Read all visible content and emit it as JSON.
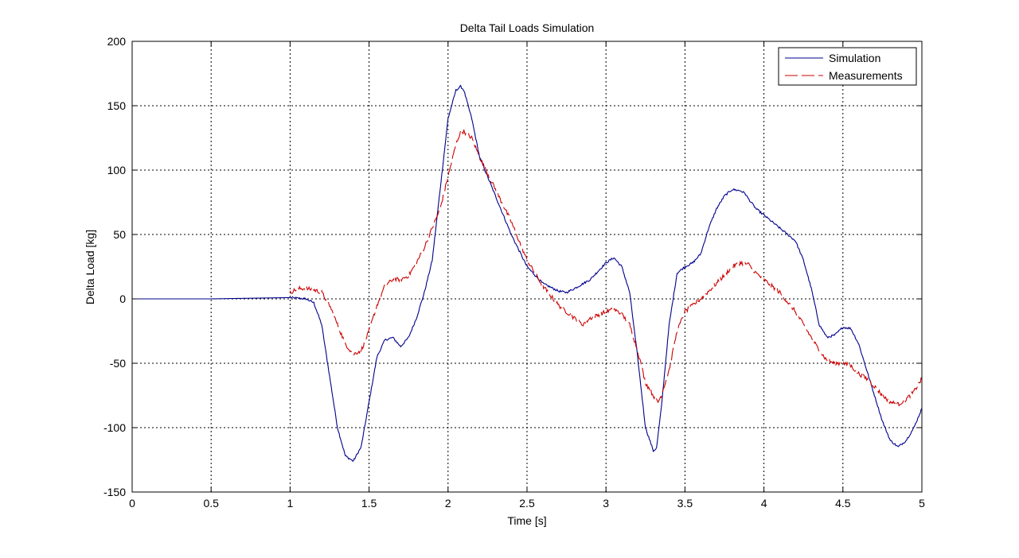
{
  "chart_data": {
    "type": "line",
    "title": "Delta Tail Loads Simulation",
    "xlabel": "Time [s]",
    "ylabel": "Delta Load [kg]",
    "xlim": [
      0,
      5
    ],
    "ylim": [
      -150,
      200
    ],
    "xticks": [
      0,
      0.5,
      1,
      1.5,
      2,
      2.5,
      3,
      3.5,
      4,
      4.5,
      5
    ],
    "xtick_labels": [
      "0",
      "0.5",
      "1",
      "1.5",
      "2",
      "2.5",
      "3",
      "3.5",
      "4",
      "4.5",
      "5"
    ],
    "yticks": [
      -150,
      -100,
      -50,
      0,
      50,
      100,
      150,
      200
    ],
    "ytick_labels": [
      "-150",
      "-100",
      "-50",
      "0",
      "50",
      "100",
      "150",
      "200"
    ],
    "grid": true,
    "legend_position": "top-right",
    "series": [
      {
        "name": "Simulation",
        "color": "#00008b",
        "style": "solid",
        "x": [
          0,
          0.5,
          1.0,
          1.1,
          1.15,
          1.2,
          1.25,
          1.3,
          1.35,
          1.4,
          1.45,
          1.5,
          1.55,
          1.6,
          1.65,
          1.7,
          1.75,
          1.8,
          1.85,
          1.9,
          1.95,
          2.0,
          2.05,
          2.08,
          2.1,
          2.15,
          2.2,
          2.3,
          2.4,
          2.5,
          2.6,
          2.7,
          2.75,
          2.8,
          2.9,
          3.0,
          3.05,
          3.1,
          3.15,
          3.2,
          3.25,
          3.3,
          3.32,
          3.35,
          3.4,
          3.45,
          3.5,
          3.55,
          3.6,
          3.65,
          3.7,
          3.75,
          3.8,
          3.85,
          3.88,
          3.9,
          3.95,
          4.0,
          4.1,
          4.2,
          4.25,
          4.3,
          4.35,
          4.4,
          4.45,
          4.5,
          4.55,
          4.6,
          4.65,
          4.7,
          4.75,
          4.8,
          4.85,
          4.9,
          4.95,
          5.0
        ],
        "y": [
          0,
          0,
          1,
          0,
          -3,
          -20,
          -60,
          -100,
          -122,
          -126,
          -115,
          -80,
          -45,
          -32,
          -30,
          -37,
          -30,
          -15,
          5,
          30,
          85,
          140,
          162,
          165,
          162,
          140,
          110,
          80,
          50,
          25,
          12,
          6,
          5,
          8,
          15,
          28,
          32,
          25,
          5,
          -45,
          -100,
          -118,
          -116,
          -85,
          -20,
          20,
          25,
          28,
          35,
          55,
          70,
          80,
          85,
          84,
          82,
          78,
          70,
          65,
          55,
          45,
          30,
          8,
          -20,
          -30,
          -28,
          -22,
          -23,
          -35,
          -55,
          -75,
          -95,
          -110,
          -115,
          -110,
          -100,
          -85
        ]
      },
      {
        "name": "Measurements",
        "color": "#cc0000",
        "style": "dashed",
        "x": [
          1.0,
          1.05,
          1.1,
          1.15,
          1.2,
          1.25,
          1.3,
          1.35,
          1.4,
          1.45,
          1.5,
          1.55,
          1.6,
          1.65,
          1.7,
          1.75,
          1.8,
          1.85,
          1.9,
          1.95,
          2.0,
          2.05,
          2.08,
          2.1,
          2.15,
          2.2,
          2.3,
          2.4,
          2.5,
          2.6,
          2.7,
          2.8,
          2.85,
          2.9,
          3.0,
          3.05,
          3.1,
          3.15,
          3.2,
          3.25,
          3.3,
          3.33,
          3.35,
          3.4,
          3.45,
          3.5,
          3.55,
          3.6,
          3.7,
          3.8,
          3.85,
          3.9,
          3.95,
          4.0,
          4.1,
          4.2,
          4.25,
          4.3,
          4.35,
          4.4,
          4.45,
          4.5,
          4.55,
          4.6,
          4.65,
          4.7,
          4.75,
          4.8,
          4.85,
          4.9,
          4.95,
          5.0
        ],
        "y": [
          5,
          8,
          8,
          7,
          5,
          -5,
          -20,
          -35,
          -43,
          -40,
          -25,
          -5,
          10,
          15,
          15,
          18,
          28,
          40,
          55,
          70,
          95,
          120,
          130,
          130,
          125,
          110,
          85,
          60,
          30,
          10,
          -5,
          -15,
          -20,
          -15,
          -10,
          -8,
          -12,
          -20,
          -40,
          -65,
          -75,
          -80,
          -75,
          -55,
          -25,
          -10,
          -5,
          0,
          12,
          25,
          28,
          27,
          20,
          15,
          5,
          -10,
          -20,
          -30,
          -40,
          -48,
          -50,
          -50,
          -52,
          -58,
          -62,
          -68,
          -75,
          -80,
          -82,
          -78,
          -72,
          -62
        ]
      }
    ]
  }
}
